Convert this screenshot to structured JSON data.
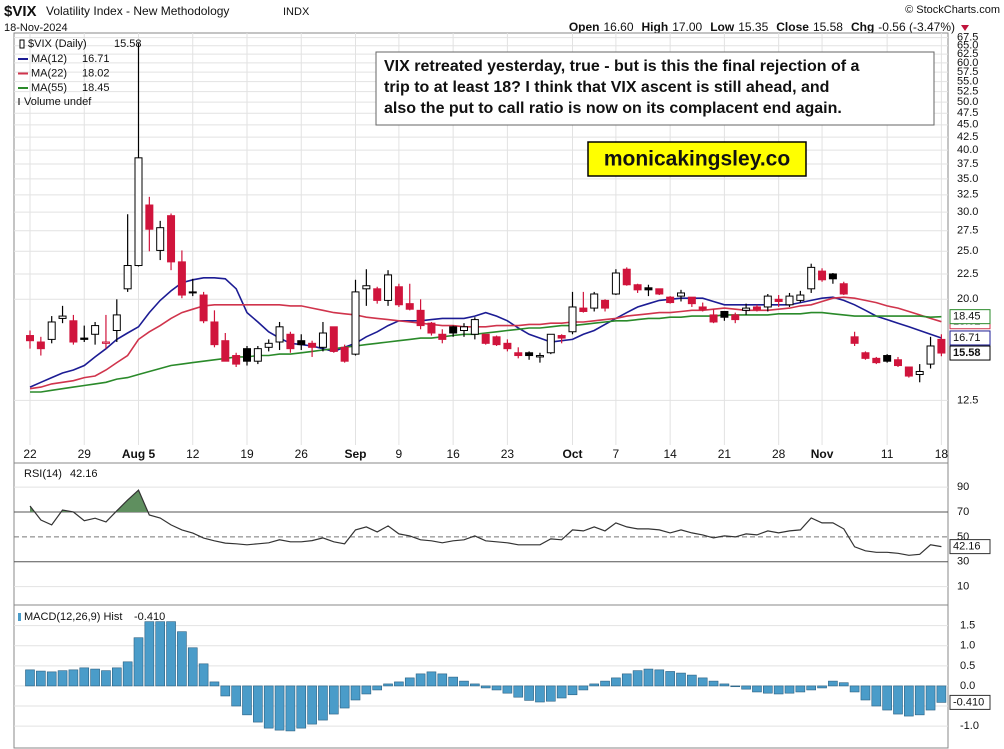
{
  "header": {
    "symbol": "$VIX",
    "name": "Volatility Index - New Methodology",
    "exchange": "INDX",
    "source": "© StockCharts.com",
    "date": "18-Nov-2024",
    "quote": [
      {
        "label": "Open",
        "value": "16.60"
      },
      {
        "label": "High",
        "value": "17.00"
      },
      {
        "label": "Low",
        "value": "15.35"
      },
      {
        "label": "Close",
        "value": "15.58"
      },
      {
        "label": "Chg",
        "value": "-0.56 (-3.47%)"
      }
    ]
  },
  "chart_data": [
    {
      "type": "candlestick",
      "title": "$VIX (Daily)",
      "log_scale": true,
      "grid": true,
      "up_color": "#000000",
      "down_color": "#d0143c",
      "volume_label": "Volume undef",
      "annotation_lines": [
        "VIX retreated yesterday, true - but is this the final rejection of a",
        "trip to at least 18? I think that VIX ascent is still ahead, and",
        "also the put to call ratio is now on its complacent end again."
      ],
      "watermark": "monicakingsley.co",
      "categories": [
        "22",
        null,
        null,
        null,
        null,
        "29",
        null,
        null,
        null,
        null,
        "Aug 5",
        null,
        null,
        null,
        null,
        "12",
        null,
        null,
        null,
        null,
        "19",
        null,
        null,
        null,
        null,
        "26",
        null,
        null,
        null,
        null,
        "Sep",
        null,
        null,
        null,
        "9",
        null,
        null,
        null,
        null,
        "16",
        null,
        null,
        null,
        null,
        "23",
        null,
        null,
        null,
        null,
        null,
        "Oct",
        null,
        null,
        null,
        "7",
        null,
        null,
        null,
        null,
        "14",
        null,
        null,
        null,
        null,
        "21",
        null,
        null,
        null,
        null,
        "28",
        null,
        null,
        null,
        "Nov",
        null,
        null,
        null,
        null,
        null,
        "11",
        null,
        null,
        null,
        null,
        "18"
      ],
      "ohlc": [
        [
          16.9,
          17.3,
          15.9,
          16.5
        ],
        [
          16.4,
          16.8,
          15.4,
          15.9
        ],
        [
          16.6,
          18.5,
          16.3,
          18.0
        ],
        [
          18.3,
          19.4,
          17.9,
          18.5
        ],
        [
          18.1,
          18.6,
          16.2,
          16.4
        ],
        [
          16.7,
          17.7,
          16.4,
          16.6
        ],
        [
          17.0,
          18.0,
          16.2,
          17.7
        ],
        [
          16.3,
          18.6,
          15.9,
          16.4
        ],
        [
          17.3,
          20.0,
          16.4,
          18.6
        ],
        [
          21.0,
          29.7,
          20.7,
          23.4
        ],
        [
          23.4,
          65.7,
          23.3,
          38.6
        ],
        [
          31.0,
          32.2,
          25.0,
          27.7
        ],
        [
          25.1,
          28.8,
          24.0,
          27.9
        ],
        [
          29.5,
          29.8,
          22.9,
          23.8
        ],
        [
          23.8,
          25.1,
          20.1,
          20.4
        ],
        [
          20.7,
          22.0,
          20.3,
          20.7
        ],
        [
          20.4,
          20.7,
          17.9,
          18.1
        ],
        [
          18.0,
          19.0,
          16.0,
          16.2
        ],
        [
          16.5,
          17.1,
          15.0,
          15.0
        ],
        [
          15.4,
          15.6,
          14.6,
          14.8
        ],
        [
          15.9,
          16.1,
          14.7,
          15.0
        ],
        [
          15.0,
          16.1,
          14.8,
          15.9
        ],
        [
          16.0,
          16.6,
          15.7,
          16.3
        ],
        [
          16.4,
          18.0,
          15.8,
          17.6
        ],
        [
          17.0,
          17.2,
          15.6,
          15.9
        ],
        [
          16.5,
          17.0,
          15.8,
          16.2
        ],
        [
          16.3,
          16.5,
          15.3,
          16.0
        ],
        [
          16.0,
          18.0,
          15.7,
          17.1
        ],
        [
          17.6,
          17.6,
          15.6,
          15.7
        ],
        [
          16.0,
          16.2,
          14.9,
          15.0
        ],
        [
          15.5,
          21.9,
          15.4,
          20.7
        ],
        [
          21.0,
          23.0,
          19.4,
          21.3
        ],
        [
          21.0,
          21.2,
          19.6,
          19.9
        ],
        [
          19.9,
          22.9,
          19.4,
          22.4
        ],
        [
          21.2,
          21.5,
          19.3,
          19.5
        ],
        [
          19.6,
          21.5,
          19.0,
          19.1
        ],
        [
          19.0,
          20.0,
          17.4,
          17.7
        ],
        [
          17.9,
          18.0,
          16.9,
          17.1
        ],
        [
          17.0,
          17.4,
          16.3,
          16.6
        ],
        [
          17.6,
          17.7,
          16.8,
          17.1
        ],
        [
          17.3,
          17.9,
          16.8,
          17.6
        ],
        [
          17.0,
          18.4,
          16.6,
          18.2
        ],
        [
          17.0,
          17.0,
          16.2,
          16.3
        ],
        [
          16.8,
          16.9,
          16.1,
          16.2
        ],
        [
          16.3,
          16.6,
          15.7,
          15.9
        ],
        [
          15.6,
          16.0,
          15.2,
          15.4
        ],
        [
          15.6,
          15.7,
          15.1,
          15.4
        ],
        [
          15.3,
          15.6,
          14.9,
          15.4
        ],
        [
          15.6,
          17.0,
          15.5,
          17.0
        ],
        [
          16.9,
          17.0,
          16.3,
          16.7
        ],
        [
          17.2,
          20.7,
          17.0,
          19.3
        ],
        [
          19.2,
          20.7,
          18.8,
          18.9
        ],
        [
          19.2,
          20.7,
          18.9,
          20.5
        ],
        [
          19.9,
          20.0,
          18.9,
          19.2
        ],
        [
          20.5,
          23.0,
          20.4,
          22.6
        ],
        [
          23.0,
          23.2,
          21.3,
          21.4
        ],
        [
          21.4,
          21.5,
          20.6,
          20.9
        ],
        [
          21.1,
          21.4,
          20.3,
          20.9
        ],
        [
          21.0,
          21.0,
          20.4,
          20.5
        ],
        [
          20.2,
          20.3,
          19.6,
          19.7
        ],
        [
          20.3,
          20.9,
          19.8,
          20.6
        ],
        [
          20.2,
          20.2,
          19.3,
          19.6
        ],
        [
          19.3,
          19.7,
          18.9,
          19.1
        ],
        [
          18.6,
          19.1,
          17.9,
          18.0
        ],
        [
          18.9,
          18.9,
          18.1,
          18.4
        ],
        [
          18.6,
          18.8,
          17.9,
          18.2
        ],
        [
          19.0,
          19.6,
          18.6,
          19.2
        ],
        [
          19.3,
          19.5,
          18.9,
          19.1
        ],
        [
          19.3,
          20.5,
          18.9,
          20.3
        ],
        [
          20.0,
          20.4,
          19.3,
          19.8
        ],
        [
          19.5,
          20.6,
          19.3,
          20.3
        ],
        [
          19.9,
          20.8,
          19.7,
          20.4
        ],
        [
          21.0,
          23.6,
          20.6,
          23.2
        ],
        [
          22.8,
          23.1,
          21.7,
          21.9
        ],
        [
          22.5,
          22.6,
          21.5,
          22.0
        ],
        [
          21.5,
          21.7,
          20.4,
          20.5
        ],
        [
          16.8,
          17.2,
          16.1,
          16.3
        ],
        [
          15.6,
          15.7,
          15.1,
          15.2
        ],
        [
          15.2,
          15.3,
          14.8,
          14.9
        ],
        [
          15.4,
          15.5,
          14.9,
          15.0
        ],
        [
          15.1,
          15.3,
          14.6,
          14.7
        ],
        [
          14.6,
          14.6,
          13.9,
          14.0
        ],
        [
          14.1,
          14.8,
          13.6,
          14.3
        ],
        [
          14.8,
          16.8,
          14.5,
          16.1
        ],
        [
          16.6,
          17.0,
          15.35,
          15.58
        ]
      ],
      "series": [
        {
          "name": "MA(12)",
          "color": "#1c1c94",
          "values": [
            13.3,
            13.6,
            13.9,
            14.2,
            14.4,
            14.7,
            15.3,
            15.9,
            16.6,
            17.1,
            17.6,
            18.8,
            19.9,
            20.8,
            21.6,
            21.9,
            22.1,
            22.1,
            22.0,
            21.0,
            18.8,
            18.0,
            17.2,
            16.7,
            16.3,
            16.2,
            16.1,
            15.9,
            15.7,
            16.0,
            16.3,
            16.8,
            17.2,
            17.7,
            18.1,
            18.1,
            18.1,
            18.2,
            18.3,
            18.3,
            18.3,
            18.5,
            18.8,
            18.5,
            18.1,
            17.5,
            17.0,
            16.7,
            16.4,
            16.5,
            16.6,
            17.0,
            17.3,
            17.8,
            18.3,
            18.8,
            19.3,
            19.6,
            19.9,
            20.0,
            20.1,
            20.1,
            20.1,
            19.8,
            19.5,
            19.5,
            19.5,
            19.5,
            19.5,
            19.5,
            19.5,
            19.7,
            19.9,
            20.1,
            20.2,
            19.9,
            19.5,
            19.0,
            18.5,
            18.2,
            17.9,
            17.6,
            17.3,
            17.0,
            16.71
          ]
        },
        {
          "name": "MA(22)",
          "color": "#d0344c",
          "values": [
            13.2,
            13.3,
            13.5,
            13.6,
            13.7,
            13.9,
            14.0,
            14.4,
            14.9,
            15.4,
            16.6,
            17.2,
            17.7,
            18.3,
            18.8,
            19.1,
            19.4,
            19.5,
            19.5,
            19.5,
            19.5,
            19.5,
            19.5,
            19.5,
            19.4,
            19.4,
            19.2,
            19.0,
            18.8,
            18.7,
            18.6,
            18.4,
            18.3,
            18.2,
            18.1,
            18.0,
            17.9,
            17.8,
            17.7,
            17.7,
            17.6,
            17.6,
            17.6,
            17.7,
            17.7,
            17.7,
            17.8,
            17.8,
            17.9,
            17.9,
            18.0,
            18.0,
            18.1,
            18.2,
            18.3,
            18.5,
            18.6,
            18.7,
            18.8,
            18.8,
            18.9,
            19.0,
            19.0,
            19.1,
            19.2,
            19.1,
            19.0,
            19.0,
            19.0,
            19.1,
            19.2,
            19.4,
            19.5,
            19.8,
            20.1,
            20.2,
            20.1,
            19.9,
            19.7,
            19.4,
            19.2,
            18.9,
            18.6,
            18.3,
            18.02
          ]
        },
        {
          "name": "MA(55)",
          "color": "#2a8a2a",
          "values": [
            13.0,
            13.0,
            13.1,
            13.2,
            13.3,
            13.4,
            13.5,
            13.6,
            13.8,
            13.9,
            14.1,
            14.3,
            14.5,
            14.7,
            14.8,
            14.9,
            15.0,
            15.1,
            15.2,
            15.3,
            15.3,
            15.4,
            15.4,
            15.5,
            15.5,
            15.6,
            15.7,
            15.8,
            15.9,
            16.0,
            16.1,
            16.2,
            16.3,
            16.4,
            16.5,
            16.6,
            16.7,
            16.7,
            16.8,
            16.9,
            17.0,
            17.0,
            17.1,
            17.2,
            17.3,
            17.4,
            17.5,
            17.5,
            17.6,
            17.7,
            17.7,
            17.8,
            17.9,
            18.0,
            18.1,
            18.1,
            18.2,
            18.3,
            18.3,
            18.4,
            18.4,
            18.5,
            18.5,
            18.5,
            18.6,
            18.6,
            18.6,
            18.6,
            18.6,
            18.7,
            18.7,
            18.7,
            18.8,
            18.8,
            18.7,
            18.6,
            18.5,
            18.5,
            18.5,
            18.5,
            18.5,
            18.5,
            18.5,
            18.4,
            18.45
          ]
        }
      ],
      "ylim": [
        10.4,
        68
      ],
      "yticks": [
        12.5,
        {
          "value": 20,
          "label": "20.0"
        },
        22.5,
        {
          "value": 25,
          "label": "25.0"
        },
        27.5,
        {
          "value": 30,
          "label": "30.0"
        },
        32.5,
        {
          "value": 35,
          "label": "35.0"
        },
        37.5,
        {
          "value": 40,
          "label": "40.0"
        },
        42.5,
        {
          "value": 45,
          "label": "45.0"
        },
        47.5,
        {
          "value": 50,
          "label": "50.0"
        },
        52.5,
        {
          "value": 55,
          "label": "55.0"
        },
        57.5,
        {
          "value": 60,
          "label": "60.0"
        },
        62.5,
        {
          "value": 65,
          "label": "65.0"
        },
        67.5
      ]
    },
    {
      "type": "line",
      "title": "RSI(14)",
      "color": "#333333",
      "fill_color": "#5f8f5f",
      "overbought": 70,
      "oversold": 30,
      "midline": 50,
      "values": [
        74.8,
        63.6,
        59.6,
        71.6,
        70,
        63,
        65,
        62,
        71,
        79.6,
        87.6,
        67.6,
        65.2,
        59.6,
        55.6,
        53,
        49,
        46.8,
        45,
        44.4,
        43.6,
        44.4,
        45.2,
        47.6,
        46,
        46,
        47,
        49.2,
        46,
        44.4,
        55.6,
        58,
        54,
        58.8,
        52.4,
        50.8,
        47.6,
        46.8,
        45.2,
        46.8,
        47.6,
        50.8,
        46.8,
        46,
        45.2,
        43.6,
        43.6,
        43.6,
        48.4,
        47.6,
        55.6,
        54.8,
        58,
        54.8,
        61.2,
        58,
        56.4,
        56.4,
        55.6,
        53.2,
        55.6,
        53.2,
        51.6,
        49.2,
        50.8,
        50,
        52.4,
        51.6,
        54.8,
        53.2,
        54.8,
        55.6,
        65.2,
        61.2,
        61.2,
        56.4,
        42,
        38.8,
        37.6,
        37.6,
        36.8,
        35.2,
        36,
        43.6,
        42.16
      ],
      "ylim": [
        -4,
        107
      ],
      "yticks": [
        10,
        30,
        50,
        70,
        90
      ]
    },
    {
      "type": "histogram",
      "title": "MACD(12,26,9) Hist",
      "color": "#4a9cc9",
      "last_label": "-0.410",
      "values": [
        0.4,
        0.37,
        0.35,
        0.38,
        0.4,
        0.45,
        0.42,
        0.38,
        0.45,
        0.6,
        1.2,
        1.6,
        1.6,
        1.6,
        1.35,
        0.95,
        0.55,
        0.1,
        -0.25,
        -0.5,
        -0.72,
        -0.9,
        -1.05,
        -1.1,
        -1.12,
        -1.05,
        -0.95,
        -0.85,
        -0.7,
        -0.55,
        -0.35,
        -0.2,
        -0.1,
        0.05,
        0.1,
        0.2,
        0.3,
        0.35,
        0.3,
        0.22,
        0.12,
        0.05,
        -0.05,
        -0.1,
        -0.18,
        -0.28,
        -0.36,
        -0.4,
        -0.38,
        -0.3,
        -0.22,
        -0.1,
        0.05,
        0.12,
        0.2,
        0.3,
        0.38,
        0.42,
        0.4,
        0.36,
        0.32,
        0.27,
        0.2,
        0.12,
        0.05,
        -0.02,
        -0.08,
        -0.15,
        -0.18,
        -0.2,
        -0.18,
        -0.15,
        -0.1,
        -0.05,
        0.12,
        0.08,
        -0.15,
        -0.35,
        -0.5,
        -0.6,
        -0.7,
        -0.75,
        -0.72,
        -0.6,
        -0.41
      ],
      "ylim": [
        -1.57,
        1.94
      ],
      "yticks": [
        1.5,
        {
          "value": 1,
          "label": "1.0"
        },
        0.5,
        {
          "value": 0,
          "label": "0.0"
        },
        -0.5,
        {
          "value": -1,
          "label": "-1.0"
        }
      ]
    }
  ]
}
